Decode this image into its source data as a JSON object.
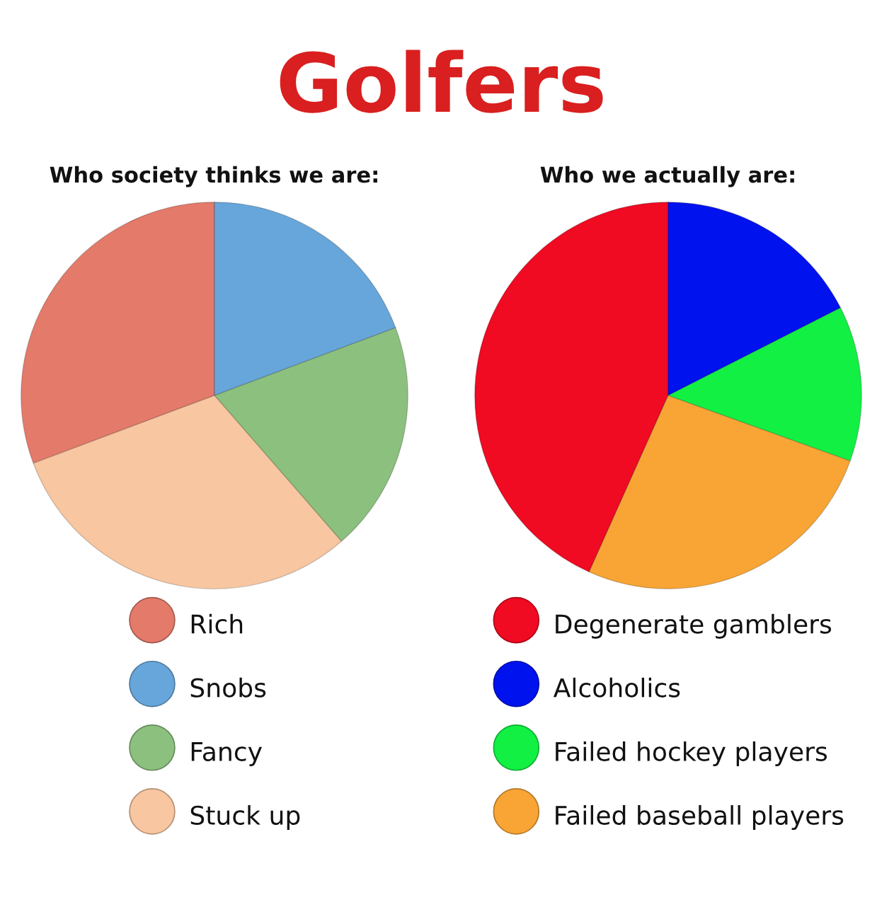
{
  "chart_data": [
    {
      "type": "pie",
      "title": "Golfers",
      "subtitle": "Who society thinks we are:",
      "categories": [
        "Rich",
        "Snobs",
        "Fancy",
        "Stuck up"
      ],
      "values": [
        30.7,
        19.3,
        19.3,
        30.7
      ],
      "colors": [
        "#e47a6a",
        "#67a6da",
        "#8cc07e",
        "#f8c6a0"
      ],
      "legend": "bottom"
    },
    {
      "type": "pie",
      "subtitle": "Who we actually are:",
      "categories": [
        "Degenerate gamblers",
        "Alcoholics",
        "Failed hockey players",
        "Failed baseball players"
      ],
      "values": [
        43.3,
        17.5,
        13.0,
        26.2
      ],
      "colors": [
        "#f00a22",
        "#0012ee",
        "#12f044",
        "#f8a535"
      ],
      "legend": "bottom"
    }
  ]
}
